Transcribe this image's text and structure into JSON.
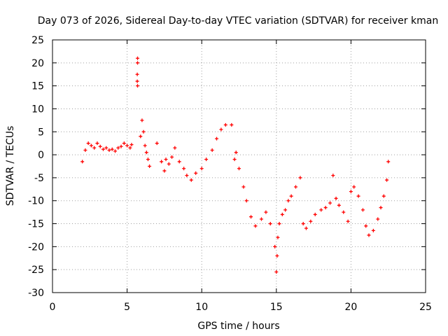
{
  "chart_data": {
    "type": "scatter",
    "title": "Day 073 of 2026, Sidereal Day-to-day VTEC variation (SDTVAR) for receiver kman",
    "xlabel": "GPS time / hours",
    "ylabel": "SDTVAR / TECUs",
    "xlim": [
      0,
      25
    ],
    "ylim": [
      -30,
      25
    ],
    "xticks": [
      0,
      5,
      10,
      15,
      20,
      25
    ],
    "yticks": [
      -30,
      -25,
      -20,
      -15,
      -10,
      -5,
      0,
      5,
      10,
      15,
      20,
      25
    ],
    "grid": true,
    "marker": "+",
    "color": "#ff0000",
    "series": [
      {
        "name": "kman",
        "x": [
          2.0,
          2.2,
          2.4,
          2.6,
          2.8,
          3.0,
          3.2,
          3.4,
          3.6,
          3.8,
          4.0,
          4.2,
          4.4,
          4.6,
          4.8,
          5.0,
          5.2,
          5.3,
          5.68,
          5.68,
          5.7,
          5.7,
          5.7,
          5.9,
          6.0,
          6.1,
          6.2,
          6.3,
          6.4,
          6.5,
          7.0,
          7.3,
          7.5,
          7.6,
          7.8,
          8.0,
          8.2,
          8.5,
          8.8,
          9.0,
          9.3,
          9.6,
          10.0,
          10.3,
          10.7,
          11.0,
          11.3,
          11.6,
          12.0,
          12.2,
          12.3,
          12.5,
          12.8,
          13.0,
          13.3,
          13.6,
          14.0,
          14.3,
          14.6,
          14.9,
          15.0,
          15.05,
          15.1,
          15.2,
          15.4,
          15.6,
          15.8,
          16.0,
          16.3,
          16.6,
          16.8,
          17.0,
          17.3,
          17.6,
          18.0,
          18.3,
          18.6,
          18.8,
          19.0,
          19.2,
          19.5,
          19.8,
          20.0,
          20.2,
          20.5,
          20.8,
          21.0,
          21.2,
          21.5,
          21.8,
          22.0,
          22.2,
          22.4,
          22.5
        ],
        "y": [
          -1.5,
          1.0,
          2.5,
          2.0,
          1.5,
          2.5,
          1.8,
          1.2,
          1.5,
          1.0,
          1.2,
          0.8,
          1.5,
          1.8,
          2.5,
          2.0,
          1.5,
          2.2,
          16.0,
          17.5,
          20.0,
          21.0,
          15.0,
          4.0,
          7.5,
          5.0,
          2.0,
          0.5,
          -1.0,
          -2.5,
          2.5,
          -1.5,
          -3.5,
          -1.0,
          -2.0,
          -0.5,
          1.5,
          -1.5,
          -3.0,
          -4.5,
          -5.5,
          -4.0,
          -3.0,
          -1.0,
          1.0,
          3.5,
          5.5,
          6.5,
          6.5,
          -1.0,
          0.5,
          -3.0,
          -7.0,
          -10.0,
          -13.5,
          -15.5,
          -14.0,
          -12.5,
          -15.0,
          -20.0,
          -25.5,
          -22.0,
          -18.0,
          -15.0,
          -13.0,
          -12.0,
          -10.0,
          -9.0,
          -7.0,
          -5.0,
          -15.0,
          -16.0,
          -14.5,
          -13.0,
          -12.0,
          -11.5,
          -10.5,
          -4.5,
          -9.5,
          -11.0,
          -12.5,
          -14.5,
          -8.0,
          -7.0,
          -9.0,
          -12.0,
          -15.5,
          -17.5,
          -16.5,
          -14.0,
          -11.5,
          -9.0,
          -5.5,
          -1.5
        ]
      }
    ]
  }
}
